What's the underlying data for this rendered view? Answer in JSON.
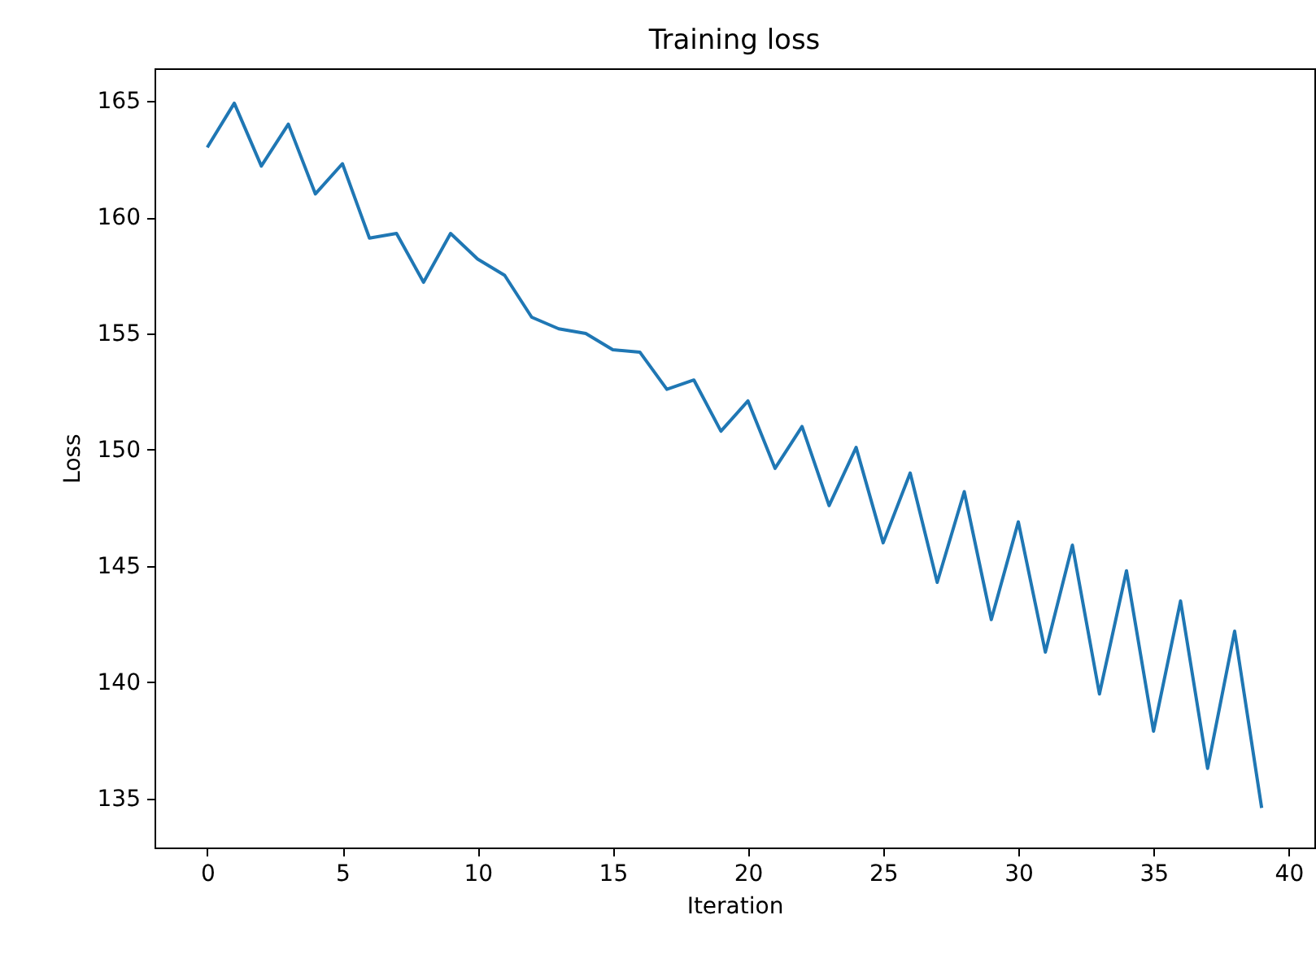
{
  "chart_data": {
    "type": "line",
    "title": "Training loss",
    "xlabel": "Iteration",
    "ylabel": "Loss",
    "x": [
      0,
      1,
      2,
      3,
      4,
      5,
      6,
      7,
      8,
      9,
      10,
      11,
      12,
      13,
      14,
      15,
      16,
      17,
      18,
      19,
      20,
      21,
      22,
      23,
      24,
      25,
      26,
      27,
      28,
      29,
      30,
      31,
      32,
      33,
      34,
      35,
      36,
      37,
      38,
      39
    ],
    "series": [
      {
        "color": "#1f77b4",
        "values": [
          163.0,
          164.9,
          162.2,
          164.0,
          161.0,
          162.3,
          159.1,
          159.3,
          157.2,
          159.3,
          158.2,
          157.5,
          155.7,
          155.2,
          155.0,
          154.3,
          154.2,
          152.6,
          153.0,
          150.8,
          152.1,
          149.2,
          151.0,
          147.6,
          150.1,
          146.0,
          149.0,
          144.3,
          148.2,
          142.7,
          146.9,
          141.3,
          145.9,
          139.5,
          144.8,
          137.9,
          143.5,
          136.3,
          142.2,
          134.6
        ]
      }
    ],
    "xlim": [
      -1.95,
      40.95
    ],
    "ylim": [
      132.9,
      166.4
    ],
    "xticks": [
      0,
      5,
      10,
      15,
      20,
      25,
      30,
      35,
      40
    ],
    "yticks": [
      135,
      140,
      145,
      150,
      155,
      160,
      165
    ],
    "grid": false,
    "legend": false,
    "marker": "none",
    "line_style": "solid"
  }
}
